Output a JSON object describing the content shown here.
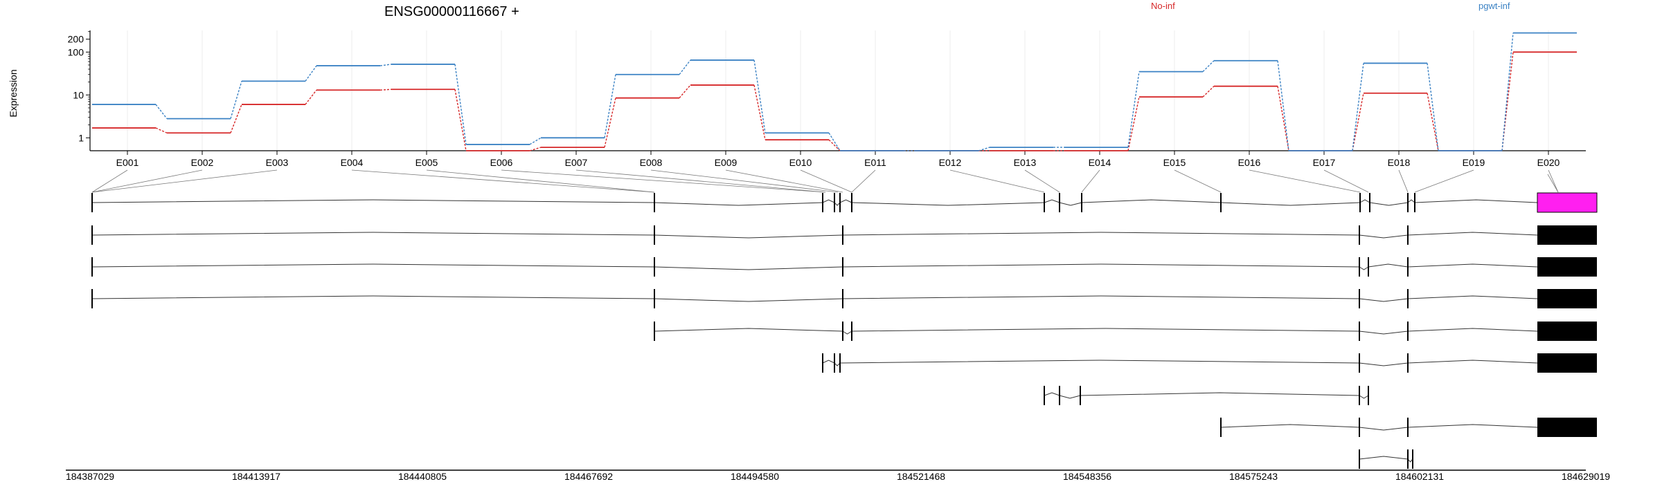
{
  "chart_data": {
    "type": "line",
    "title": "ENSG00000116667 +",
    "ylabel": "Expression",
    "y_scale": "log",
    "y_ticks": [
      "1",
      "10",
      "100",
      "200"
    ],
    "ylim": [
      0.5,
      320
    ],
    "legend_placement": "top",
    "grid": true,
    "categories": [
      "E001",
      "E002",
      "E003",
      "E004",
      "E005",
      "E006",
      "E007",
      "E008",
      "E009",
      "E010",
      "E011",
      "E012",
      "E013",
      "E014",
      "E015",
      "E016",
      "E017",
      "E018",
      "E019",
      "E020"
    ],
    "series": [
      {
        "name": "No-inf",
        "color": "#d62728",
        "values": [
          1.7,
          1.3,
          6,
          13,
          13.5,
          0.5,
          0.6,
          8.5,
          17,
          0.9,
          0.5,
          0.5,
          0.5,
          0.5,
          9,
          16,
          0.5,
          11,
          0.5,
          100
        ]
      },
      {
        "name": "pgwt-inf",
        "color": "#3b82c4",
        "values": [
          6,
          2.8,
          21,
          48,
          52,
          0.7,
          1,
          30,
          65,
          1.3,
          0.5,
          0.5,
          0.6,
          0.6,
          35,
          63,
          0.5,
          55,
          0.5,
          280
        ]
      }
    ],
    "genome_axis": {
      "ticks": [
        "184387029",
        "184413917",
        "184440805",
        "184467692",
        "184494580",
        "184521468",
        "184548356",
        "184575243",
        "184602131",
        "184629019"
      ],
      "range": [
        184387029,
        184629019
      ]
    },
    "highlight_color": "#ff1ff0",
    "exon_color": "#000000"
  }
}
